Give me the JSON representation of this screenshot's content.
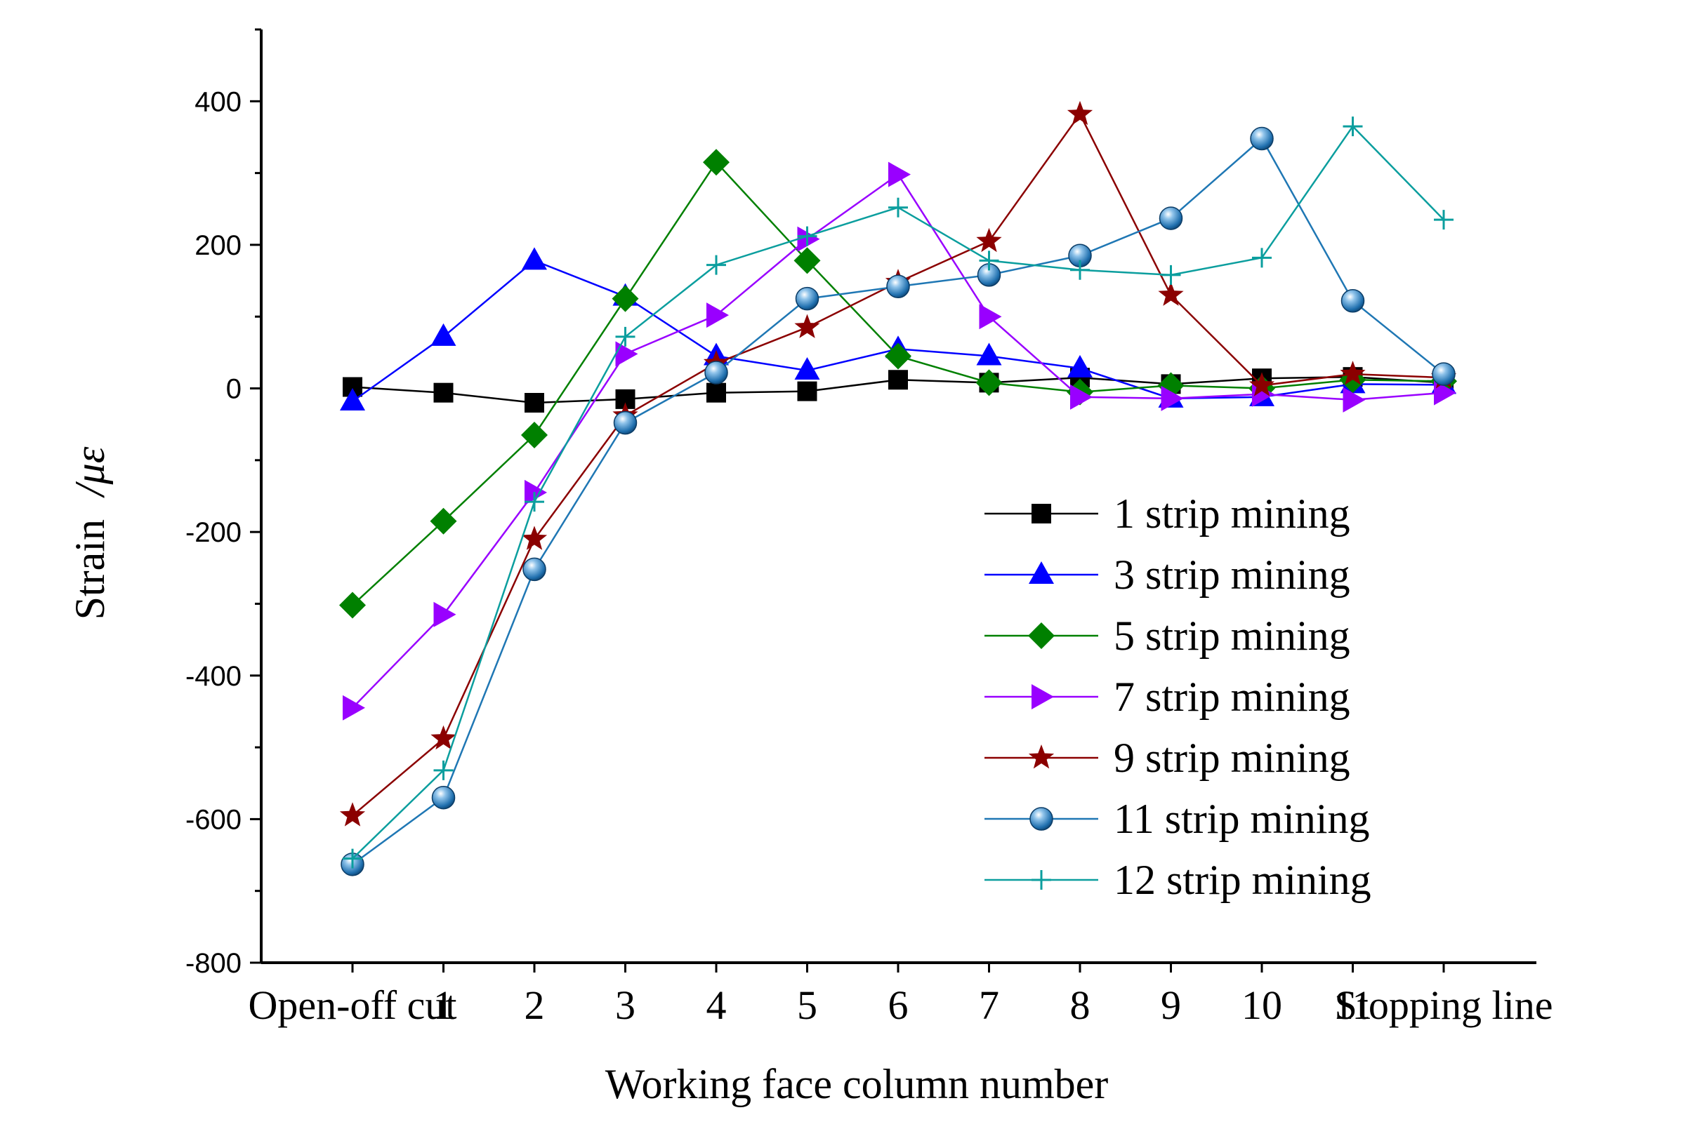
{
  "chart_data": {
    "type": "line",
    "title": "",
    "xlabel": "Working face column number",
    "ylabel": "Strain",
    "ylabel_unit": "/με",
    "ylim": [
      -800,
      500
    ],
    "yticks": [
      -800,
      -600,
      -400,
      -200,
      0,
      200,
      400
    ],
    "categories": [
      "Open-off cut",
      "1",
      "2",
      "3",
      "4",
      "5",
      "6",
      "7",
      "8",
      "9",
      "10",
      "11",
      "Stopping line"
    ],
    "legend_position": "bottom-right",
    "series": [
      {
        "name": "1 strip mining",
        "color": "#000000",
        "marker": "square",
        "values": [
          2,
          -6,
          -20,
          -15,
          -6,
          -4,
          12,
          8,
          15,
          6,
          14,
          16,
          8
        ]
      },
      {
        "name": "3 strip mining",
        "color": "#0000ff",
        "marker": "triangle-up",
        "values": [
          -18,
          72,
          178,
          128,
          45,
          25,
          55,
          45,
          28,
          -14,
          -12,
          6,
          5
        ]
      },
      {
        "name": "5 strip mining",
        "color": "#008000",
        "marker": "diamond",
        "values": [
          -302,
          -185,
          -65,
          125,
          315,
          178,
          45,
          8,
          -5,
          4,
          0,
          12,
          10
        ]
      },
      {
        "name": "7 strip mining",
        "color": "#9900ff",
        "marker": "triangle-right",
        "values": [
          -445,
          -315,
          -145,
          48,
          102,
          208,
          298,
          100,
          -12,
          -14,
          -8,
          -16,
          -6
        ]
      },
      {
        "name": "9 strip mining",
        "color": "#8b0000",
        "marker": "star",
        "values": [
          -595,
          -488,
          -210,
          -38,
          35,
          85,
          148,
          205,
          382,
          130,
          4,
          20,
          15
        ]
      },
      {
        "name": "11 strip mining",
        "color": "#1f77b4",
        "marker": "circle",
        "values": [
          -663,
          -570,
          -252,
          -48,
          22,
          125,
          142,
          158,
          185,
          237,
          348,
          122,
          20
        ]
      },
      {
        "name": "12 strip mining",
        "color": "#0b9e9e",
        "marker": "plus",
        "values": [
          -655,
          -532,
          -158,
          72,
          172,
          212,
          252,
          178,
          165,
          158,
          182,
          365,
          235
        ]
      }
    ]
  }
}
